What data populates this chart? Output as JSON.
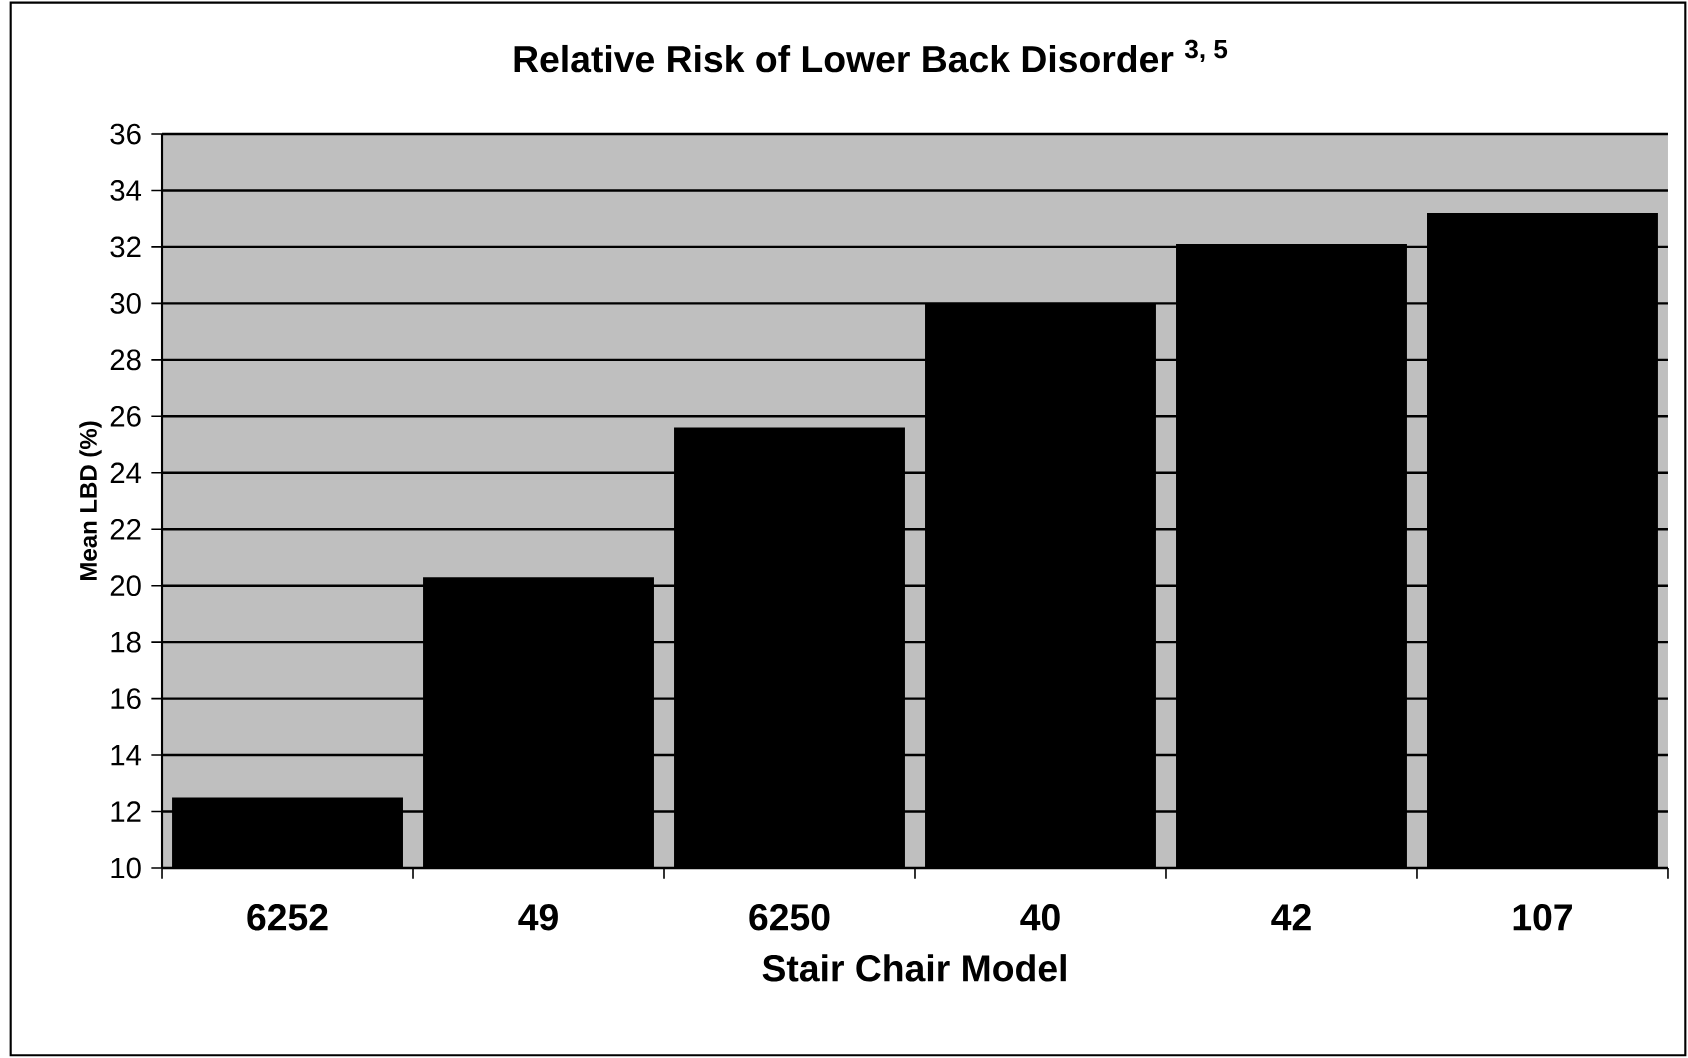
{
  "chart_data": {
    "type": "bar",
    "title": "Relative Risk of Lower Back Disorder $^{3, 5}$",
    "xlabel": "Stair Chair Model",
    "ylabel": "Mean LBD (%)",
    "categories": [
      "6252",
      "49",
      "6250",
      "40",
      "42",
      "107"
    ],
    "values": [
      12.5,
      20.3,
      25.6,
      30.0,
      32.1,
      33.2
    ],
    "color": "#000000",
    "ylim": [
      10,
      36
    ],
    "yticks": [
      10,
      12,
      14,
      16,
      18,
      20,
      22,
      24,
      26,
      28,
      30,
      32,
      34,
      36
    ],
    "grid": "y"
  }
}
